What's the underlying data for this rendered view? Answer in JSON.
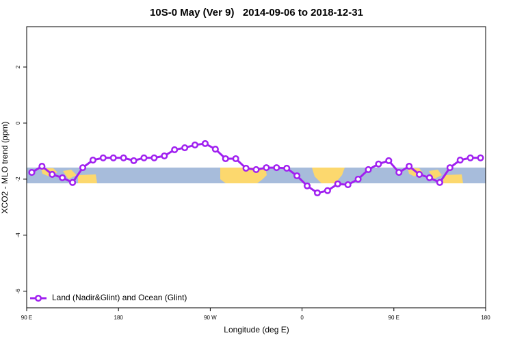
{
  "chart_data": {
    "type": "line",
    "title": "10S-0 May (Ver 9)   2014-09-06 to 2018-12-31",
    "x_label": "Longitude (deg E)",
    "y_label": "XCO2 - MLO trend (ppm)",
    "xlim": [
      90,
      540
    ],
    "ylim": [
      -6.59,
      3.44
    ],
    "xticks": [
      {
        "value": 90,
        "label": "90 E"
      },
      180,
      {
        "value": 270,
        "label": "90 W"
      },
      {
        "value": 360,
        "label": "0"
      },
      {
        "value": 450,
        "label": "90 E"
      },
      {
        "value": 540,
        "label": "180"
      }
    ],
    "yticks": [
      2,
      0,
      -2,
      -4,
      -6
    ],
    "legend": "bottom-left",
    "x": [
      95,
      105,
      115,
      125,
      135,
      145,
      155,
      165,
      175,
      185,
      195,
      205,
      215,
      225,
      235,
      245,
      255,
      265,
      275,
      285,
      295,
      305,
      315,
      325,
      335,
      345,
      355,
      365,
      375,
      385,
      395,
      405,
      415,
      425,
      435,
      445,
      455,
      465,
      475,
      485,
      495,
      505,
      515,
      525,
      535
    ],
    "series": [
      {
        "name": "Land (Nadir&Glint) and Ocean (Glint)",
        "color": "#a020f0",
        "values": [
          -1.76,
          -1.54,
          -1.83,
          -1.95,
          -2.12,
          -1.59,
          -1.32,
          -1.24,
          -1.24,
          -1.24,
          -1.34,
          -1.24,
          -1.24,
          -1.17,
          -0.95,
          -0.88,
          -0.78,
          -0.73,
          -0.93,
          -1.27,
          -1.27,
          -1.61,
          -1.66,
          -1.59,
          -1.59,
          -1.61,
          -1.88,
          -2.24,
          -2.49,
          -2.41,
          -2.17,
          -2.2,
          -2.0,
          -1.66,
          -1.46,
          -1.34,
          -1.76,
          -1.54,
          -1.83,
          -1.95,
          -2.12,
          -1.59,
          -1.32,
          -1.24,
          -1.24
        ]
      }
    ]
  }
}
